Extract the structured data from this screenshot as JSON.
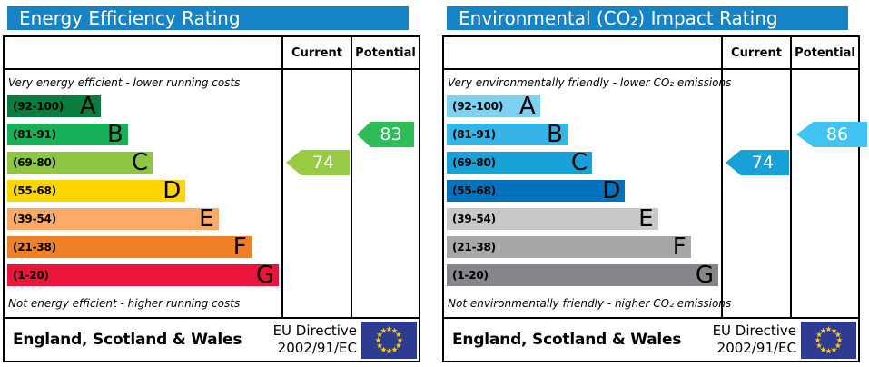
{
  "theme": {
    "header_bg": "#1583c5",
    "header_text": "#ffffff",
    "border": "#000000",
    "eu_flag_field": "#2d3c90",
    "eu_flag_stars": "#ffcc00"
  },
  "chart_data": [
    {
      "type": "bar",
      "title": "Energy Efficiency Rating",
      "bands": [
        "A (92-100)",
        "B (81-91)",
        "C (69-80)",
        "D (55-68)",
        "E (39-54)",
        "F (21-38)",
        "G (1-20)"
      ],
      "current": 74,
      "current_band": "C",
      "potential": 83,
      "potential_band": "B"
    },
    {
      "type": "bar",
      "title": "Environmental (CO₂) Impact Rating",
      "bands": [
        "A (92-100)",
        "B (81-91)",
        "C (69-80)",
        "D (55-68)",
        "E (39-54)",
        "F (21-38)",
        "G (1-20)"
      ],
      "current": 74,
      "current_band": "C",
      "potential": 86,
      "potential_band": "B"
    }
  ],
  "panels": {
    "left": {
      "title": "Energy Efficiency Rating",
      "header": {
        "current": "Current",
        "potential": "Potential"
      },
      "top_note": "Very energy efficient - lower running costs",
      "bottom_note": "Not energy efficient - higher running costs",
      "bands": [
        {
          "range": "(92-100)",
          "letter": "A",
          "color": "#0a7d3e",
          "width_pct": 34
        },
        {
          "range": "(81-91)",
          "letter": "B",
          "color": "#17b058",
          "width_pct": 44
        },
        {
          "range": "(69-80)",
          "letter": "C",
          "color": "#8dc63f",
          "width_pct": 53
        },
        {
          "range": "(55-68)",
          "letter": "D",
          "color": "#ffd500",
          "width_pct": 65
        },
        {
          "range": "(39-54)",
          "letter": "E",
          "color": "#fcaa65",
          "width_pct": 77
        },
        {
          "range": "(21-38)",
          "letter": "F",
          "color": "#ef8023",
          "width_pct": 89
        },
        {
          "range": "(1-20)",
          "letter": "G",
          "color": "#e9153b",
          "width_pct": 99
        }
      ],
      "current": {
        "value": "74",
        "color": "#97cb43",
        "band_index": 2
      },
      "potential": {
        "value": "83",
        "color": "#2ebd59",
        "band_index": 1
      },
      "footer": {
        "region": "England, Scotland & Wales",
        "directive_line1": "EU Directive",
        "directive_line2": "2002/91/EC"
      }
    },
    "right": {
      "title": "Environmental (CO₂) Impact Rating",
      "header": {
        "current": "Current",
        "potential": "Potential"
      },
      "top_note": "Very environmentally friendly - lower CO₂ emissions",
      "bottom_note": "Not environmentally friendly - higher CO₂ emissions",
      "bands": [
        {
          "range": "(92-100)",
          "letter": "A",
          "color": "#7fd1f2",
          "width_pct": 34
        },
        {
          "range": "(81-91)",
          "letter": "B",
          "color": "#35b4e7",
          "width_pct": 44
        },
        {
          "range": "(69-80)",
          "letter": "C",
          "color": "#18a0d8",
          "width_pct": 53
        },
        {
          "range": "(55-68)",
          "letter": "D",
          "color": "#0072bc",
          "width_pct": 65
        },
        {
          "range": "(39-54)",
          "letter": "E",
          "color": "#c6c8ca",
          "width_pct": 77
        },
        {
          "range": "(21-38)",
          "letter": "F",
          "color": "#a5a7a9",
          "width_pct": 89
        },
        {
          "range": "(1-20)",
          "letter": "G",
          "color": "#85878a",
          "width_pct": 99
        }
      ],
      "current": {
        "value": "74",
        "color": "#18a0d8",
        "band_index": 2
      },
      "potential": {
        "value": "86",
        "color": "#41c3f3",
        "band_index": 1
      },
      "footer": {
        "region": "England, Scotland & Wales",
        "directive_line1": "EU Directive",
        "directive_line2": "2002/91/EC"
      }
    }
  }
}
